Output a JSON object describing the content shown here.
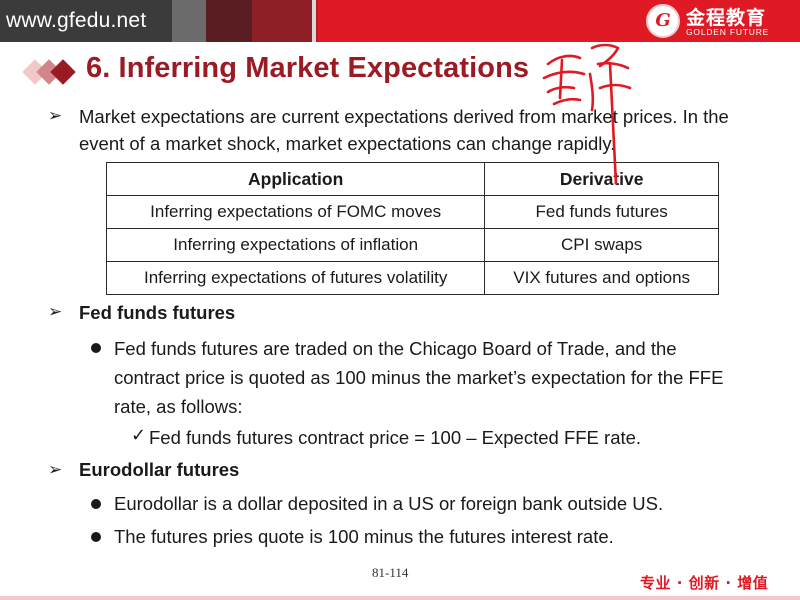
{
  "banner": {
    "url": "www.gfedu.net",
    "brand_cn": "金程教育",
    "brand_en": "GOLDEN FUTURE",
    "logo_glyph": "G",
    "accent_color": "#e01a24",
    "title_color": "#9b1b24"
  },
  "slide": {
    "title": "6. Inferring Market Expectations",
    "intro": "Market expectations are current expectations derived from market prices. In the event of a market shock, market expectations can change rapidly.",
    "table": {
      "headers": [
        "Application",
        "Derivative"
      ],
      "rows": [
        [
          "Inferring expectations of FOMC moves",
          "Fed funds futures"
        ],
        [
          "Inferring expectations of inflation",
          "CPI swaps"
        ],
        [
          "Inferring expectations of futures volatility",
          "VIX futures and options"
        ]
      ]
    },
    "section1": {
      "heading": "Fed funds futures",
      "bullet": "Fed funds futures are traded on the Chicago Board of Trade, and the contract price is quoted as 100 minus the market’s expectation for the FFE rate, as follows:",
      "check_item": "Fed funds futures contract price = 100 – Expected FFE rate."
    },
    "section2": {
      "heading": "Eurodollar futures",
      "bullets": [
        "Eurodollar is a dollar deposited in a US or foreign bank outside US.",
        "The futures pries quote is 100 minus the futures interest rate."
      ]
    },
    "page_number": "81-114",
    "slogan": "专业 · 创新 · 增值"
  }
}
